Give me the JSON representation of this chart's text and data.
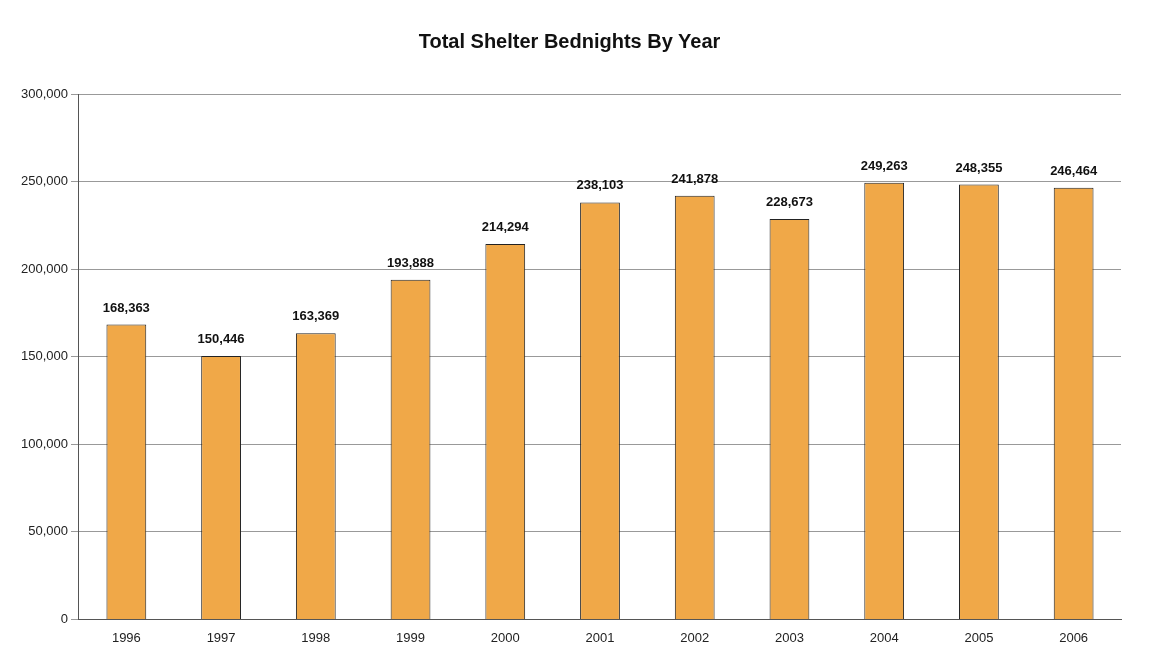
{
  "chart_data": {
    "type": "bar",
    "title": "Total Shelter Bednights By Year",
    "categories": [
      "1996",
      "1997",
      "1998",
      "1999",
      "2000",
      "2001",
      "2002",
      "2003",
      "2004",
      "2005",
      "2006"
    ],
    "values": [
      168363,
      150446,
      163369,
      193888,
      214294,
      238103,
      241878,
      228673,
      249263,
      248355,
      246464
    ],
    "value_labels": [
      "168,363",
      "150,446",
      "163,369",
      "193,888",
      "214,294",
      "238,103",
      "241,878",
      "228,673",
      "249,263",
      "248,355",
      "246,464"
    ],
    "color": "#f0a848",
    "ylim": [
      0,
      300000
    ],
    "yticks": [
      0,
      {
        "value": 50000,
        "label": "50,000"
      },
      {
        "value": 100000,
        "label": "100,000"
      },
      {
        "value": 150000,
        "label": "150,000"
      },
      {
        "value": 200000,
        "label": "200,000"
      },
      {
        "value": 250000,
        "label": "250,000"
      },
      {
        "value": 300000,
        "label": "300,000"
      }
    ],
    "grid": "y",
    "legend": false
  }
}
